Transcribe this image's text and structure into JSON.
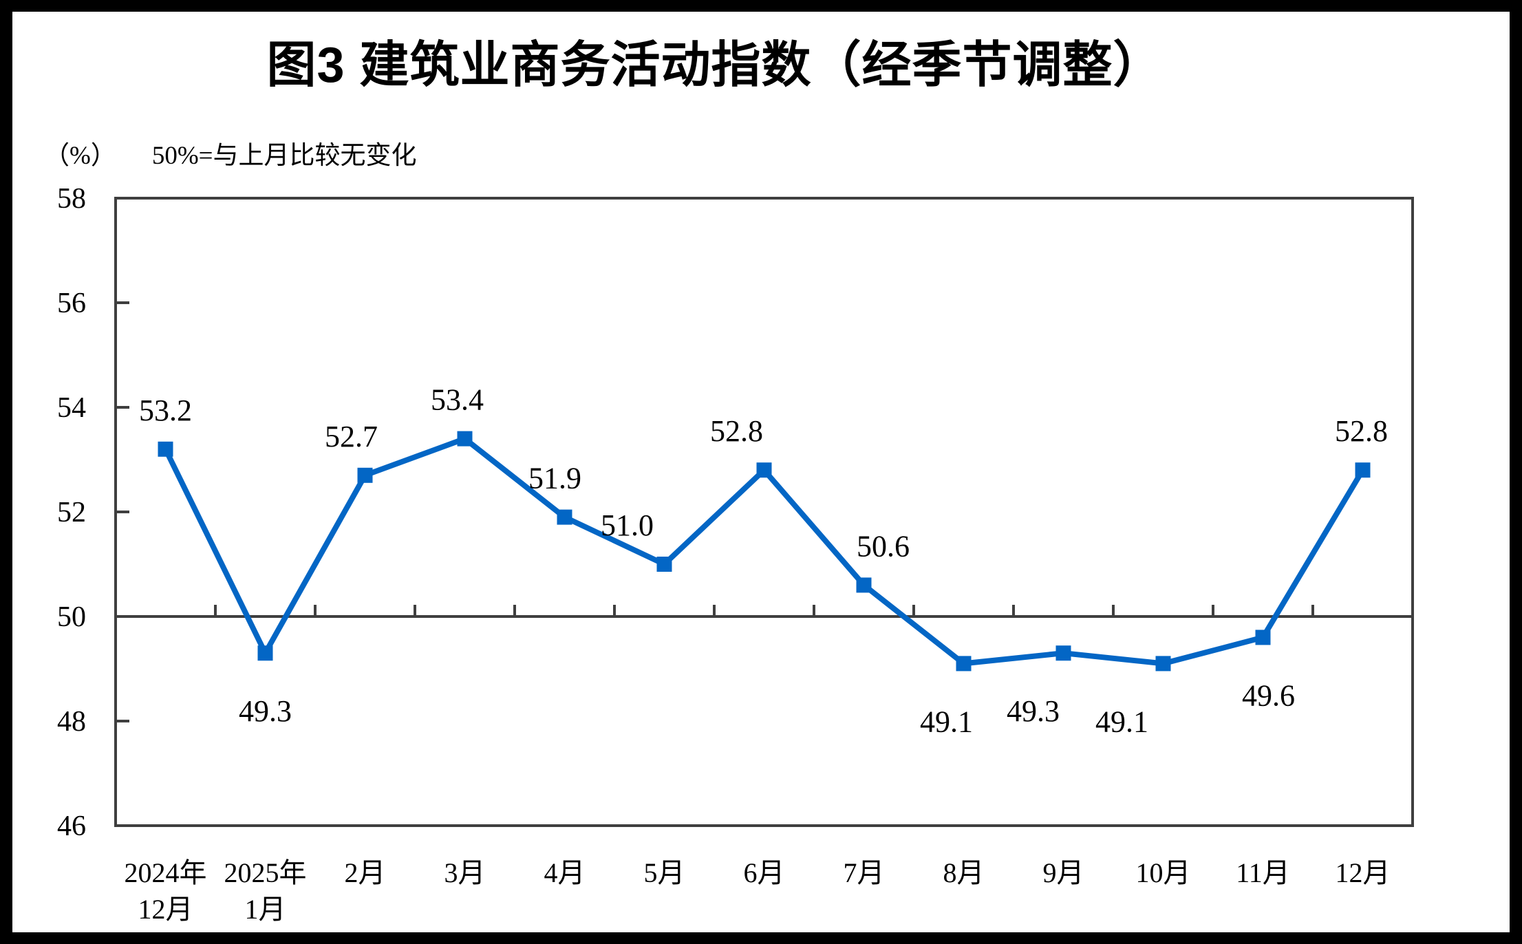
{
  "title": "图3  建筑业商务活动指数（经季节调整）",
  "subtitle": {
    "unit_label": "（%）",
    "note": "50%=与上月比较无变化"
  },
  "chart_data": {
    "type": "line",
    "title": "图3  建筑业商务活动指数（经季节调整）",
    "ylabel": "（%）",
    "annotation": "50%=与上月比较无变化",
    "categories": [
      [
        "2024年",
        "12月"
      ],
      [
        "2025年",
        "1月"
      ],
      "2月",
      "3月",
      "4月",
      "5月",
      "6月",
      "7月",
      "8月",
      "9月",
      "10月",
      "11月",
      "12月"
    ],
    "series": [
      {
        "name": "建筑业商务活动指数（经季节调整）",
        "values": [
          53.2,
          49.3,
          52.7,
          53.4,
          51.9,
          51.0,
          52.8,
          50.6,
          49.1,
          49.3,
          49.1,
          49.6,
          52.8
        ]
      }
    ],
    "data_labels": [
      "53.2",
      "49.3",
      "52.7",
      "53.4",
      "51.9",
      "51.0",
      "52.8",
      "50.6",
      "49.1",
      "49.3",
      "49.1",
      "49.6",
      "52.8"
    ],
    "label_positions": [
      "above",
      "below",
      "above",
      "above",
      "above",
      "above",
      "above",
      "above",
      "below",
      "below",
      "below",
      "below",
      "above"
    ],
    "label_dx": [
      0,
      0,
      -20,
      -11,
      -14,
      -54,
      -40,
      28,
      -25,
      -44,
      -60,
      8,
      -2
    ],
    "ylim": [
      46,
      58
    ],
    "yticks": [
      46,
      48,
      50,
      52,
      54,
      56,
      58
    ],
    "reference_line": 50,
    "grid": false,
    "legend": "none",
    "line_color": "#0366C5",
    "marker_color": "#0366C5",
    "axis_color": "#3F3F3F",
    "text_color": "#000000"
  }
}
